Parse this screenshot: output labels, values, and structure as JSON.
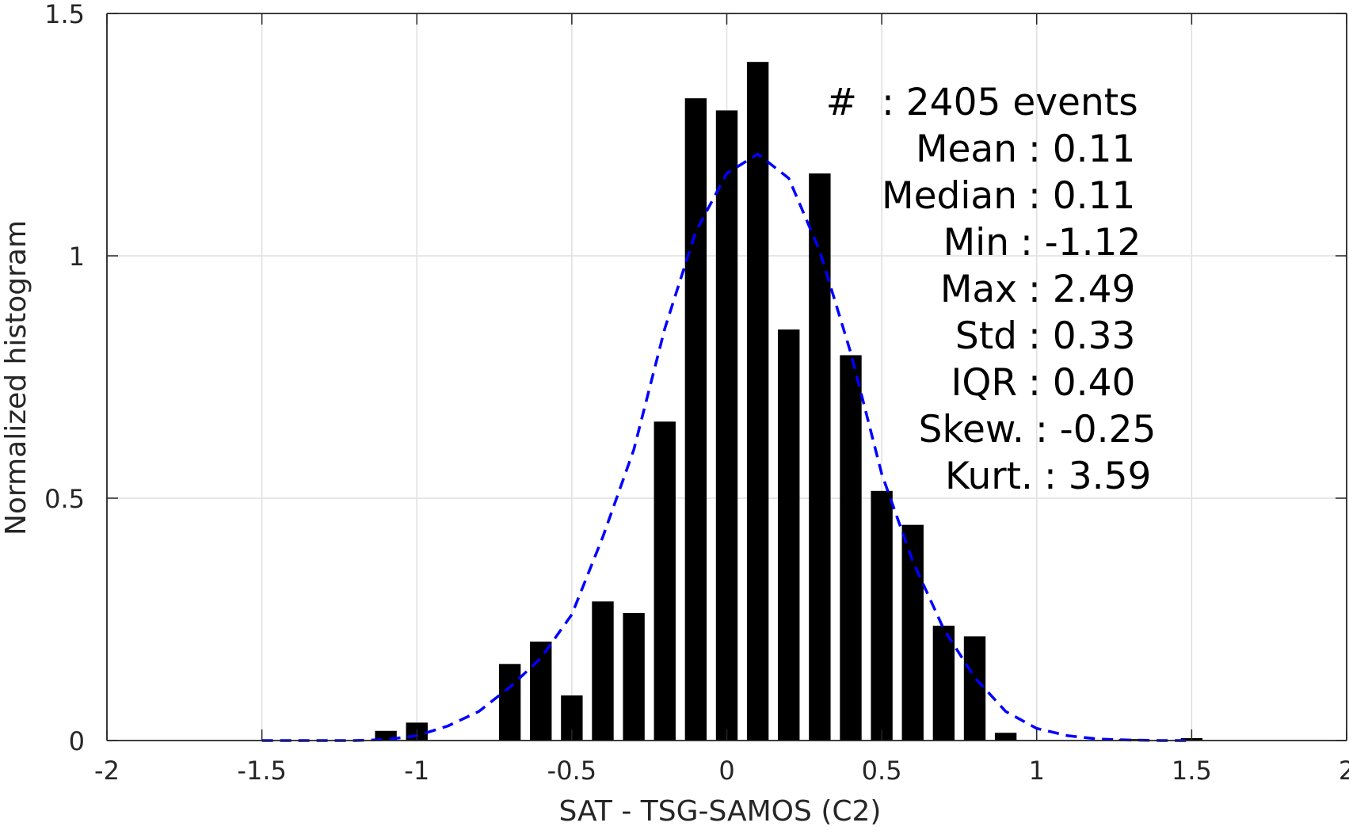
{
  "chart_data": {
    "type": "bar",
    "xlabel": "SAT - TSG-SAMOS (C2)",
    "ylabel": "Normalized histogram",
    "xlim": [
      -2,
      2
    ],
    "ylim": [
      0,
      1.5
    ],
    "x_ticks": [
      "-2",
      "-1.5",
      "-1",
      "-0.5",
      "0",
      "0.5",
      "1",
      "1.5",
      "2"
    ],
    "y_ticks": [
      "0",
      "0.5",
      "1",
      "1.5"
    ],
    "grid": true,
    "bar_width": 0.07,
    "bars": {
      "x": [
        -1.1,
        -1.0,
        -0.7,
        -0.6,
        -0.5,
        -0.4,
        -0.3,
        -0.2,
        -0.1,
        0.0,
        0.1,
        0.2,
        0.3,
        0.4,
        0.5,
        0.6,
        0.7,
        0.8,
        0.9,
        1.3,
        1.5
      ],
      "values": [
        0.02,
        0.037,
        0.158,
        0.204,
        0.093,
        0.287,
        0.263,
        0.658,
        1.325,
        1.3,
        1.4,
        0.848,
        1.17,
        0.795,
        0.515,
        0.445,
        0.237,
        0.215,
        0.016,
        0.003,
        0.005
      ],
      "color": "#000000"
    },
    "fit_curve": {
      "style": "dashed",
      "color": "#0000ff",
      "x": [
        -1.5,
        -1.4,
        -1.3,
        -1.2,
        -1.1,
        -1.0,
        -0.9,
        -0.8,
        -0.7,
        -0.6,
        -0.5,
        -0.4,
        -0.3,
        -0.2,
        -0.1,
        0.0,
        0.1,
        0.2,
        0.3,
        0.4,
        0.5,
        0.6,
        0.7,
        0.8,
        0.9,
        1.0,
        1.1,
        1.2,
        1.3,
        1.4,
        1.5
      ],
      "y": [
        0.0,
        0.0,
        0.0,
        0.0,
        0.002,
        0.01,
        0.03,
        0.06,
        0.11,
        0.17,
        0.26,
        0.42,
        0.6,
        0.85,
        1.05,
        1.17,
        1.21,
        1.16,
        1.01,
        0.8,
        0.55,
        0.37,
        0.23,
        0.13,
        0.06,
        0.025,
        0.01,
        0.003,
        0.001,
        0.0,
        0.0
      ]
    },
    "annotations": [
      {
        "label": "#",
        "value": ": 2405 events"
      },
      {
        "label": "Mean",
        "value": ": 0.11"
      },
      {
        "label": "Median",
        "value": ": 0.11"
      },
      {
        "label": "Min",
        "value": ": -1.12"
      },
      {
        "label": "Max",
        "value": ": 2.49"
      },
      {
        "label": "Std",
        "value": ": 0.33"
      },
      {
        "label": "IQR",
        "value": ": 0.40"
      },
      {
        "label": "Skew.",
        "value": ": -0.25"
      },
      {
        "label": "Kurt.",
        "value": ": 3.59"
      }
    ]
  }
}
